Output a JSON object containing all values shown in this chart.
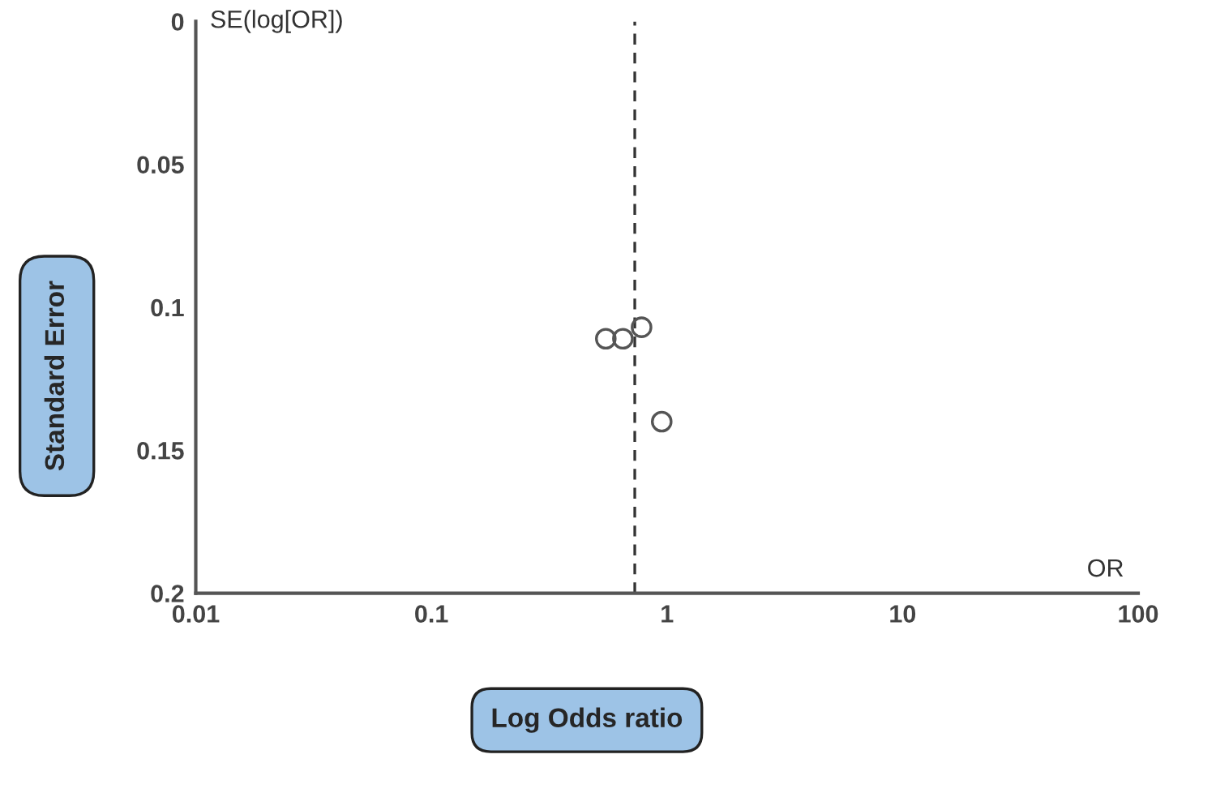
{
  "chart_data": {
    "type": "scatter",
    "xlabel": "Log Odds ratio",
    "ylabel": "Standard Error",
    "annotations": [
      "SE(log[OR])",
      "OR"
    ],
    "x": [
      0.55,
      0.65,
      0.78,
      0.95
    ],
    "series": [
      {
        "color": "#555555",
        "values": [
          0.111,
          0.111,
          0.107,
          0.14
        ]
      }
    ],
    "log": "x",
    "marker": "circle",
    "grid": false,
    "xlim": [
      0.01,
      100
    ],
    "xticks": [
      0.01,
      0.1,
      1,
      10,
      100
    ],
    "ylim": [
      0.2,
      0
    ],
    "yticks": [
      0,
      0.05,
      0.1,
      0.15,
      0.2
    ],
    "ref_lines": [
      {
        "axis": "x",
        "value": 0.73,
        "line_style": "dashed",
        "color": "#333333"
      }
    ]
  }
}
